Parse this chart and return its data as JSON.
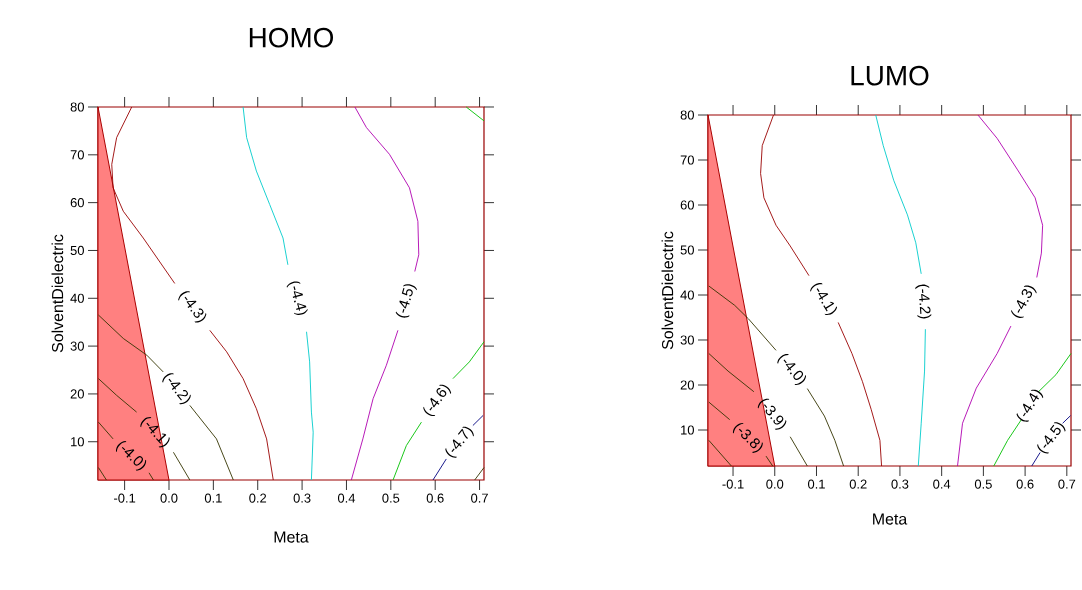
{
  "chart_data": [
    {
      "type": "line",
      "title": "HOMO",
      "xlabel": "Meta",
      "ylabel": "SolventDielectric",
      "xlim": [
        -0.16,
        0.71
      ],
      "ylim": [
        2,
        80
      ],
      "xticks": [
        -0.1,
        {
          "value": 0,
          "label": "0.0"
        },
        0.1,
        0.2,
        0.3,
        0.4,
        0.5,
        0.6,
        0.7
      ],
      "yticks": [
        10,
        20,
        30,
        40,
        50,
        60,
        70,
        80
      ],
      "series": [
        {
          "type": "area",
          "color": "#ff8080",
          "x": [
            -0.16,
            0.0
          ],
          "values": [
            80,
            2
          ]
        },
        {
          "name": "(-4.0)",
          "color": "#333300",
          "x": [
            -0.159,
            -0.126,
            null,
            -0.045,
            -0.035
          ],
          "values": [
            14.1,
            10.6,
            null,
            3.5,
            2
          ]
        },
        {
          "color": "#333300",
          "x": [
            -0.159,
            -0.141
          ],
          "values": [
            4.6,
            2
          ]
        },
        {
          "name": "(-4.1)",
          "color": "#333300",
          "x": [
            -0.159,
            -0.118,
            -0.073,
            null,
            0.01,
            0.047
          ],
          "values": [
            23.2,
            19.7,
            16.2,
            null,
            7.8,
            2
          ]
        },
        {
          "name": "(-4.2)",
          "color": "#333300",
          "x": [
            -0.159,
            -0.103,
            -0.05,
            -0.013,
            null,
            0.047,
            0.107,
            0.145
          ],
          "values": [
            36.5,
            31.6,
            28.1,
            24.6,
            null,
            17.6,
            10.6,
            2
          ]
        },
        {
          "name": "(-4.3)",
          "color": "#990000",
          "x": [
            -0.084,
            -0.118,
            -0.129,
            -0.126,
            -0.103,
            -0.058,
            0.013,
            null,
            0.092,
            0.13,
            0.167,
            0.197,
            0.22,
            0.235
          ],
          "values": [
            80,
            73.6,
            68.0,
            63.1,
            58.2,
            52.6,
            43.1,
            null,
            33.3,
            28.8,
            23.2,
            16.9,
            10.6,
            2
          ]
        },
        {
          "name": "(-4.4)",
          "color": "#00cccc",
          "x": [
            0.167,
            0.175,
            0.197,
            0.227,
            0.257,
            0.268,
            null,
            0.31,
            0.317,
            0.321,
            0.325,
            0.321
          ],
          "values": [
            80,
            73.6,
            66.6,
            59.6,
            52.6,
            47.0,
            null,
            33.0,
            26.7,
            16.2,
            12.0,
            2
          ]
        },
        {
          "name": "(-4.5)",
          "color": "#b000b0",
          "x": [
            0.419,
            0.445,
            0.497,
            0.542,
            0.561,
            0.563,
            0.554,
            null,
            0.516,
            0.49,
            0.46,
            0.437,
            0.411
          ],
          "values": [
            80,
            75.7,
            70.1,
            63.1,
            56.1,
            49.1,
            45.6,
            null,
            33.3,
            26.0,
            19.0,
            10.6,
            2
          ]
        },
        {
          "name": "(-4.6)",
          "color": "#00c000",
          "x": [
            0.505,
            0.535,
            0.569,
            null,
            0.64,
            0.677,
            0.71,
            null,
            0.67,
            0.71
          ],
          "values": [
            2,
            9.2,
            14.1,
            null,
            23.2,
            26.7,
            30.9,
            null,
            80,
            77.1
          ]
        },
        {
          "name": "(-4.7)",
          "color": "#000080",
          "x": [
            0.595,
            0.625,
            null,
            0.685,
            0.708
          ],
          "values": [
            2,
            6.4,
            null,
            13.4,
            15.5
          ]
        },
        {
          "color": "#333300",
          "x": [
            0.689,
            0.71
          ],
          "values": [
            2,
            4.6
          ]
        }
      ]
    },
    {
      "type": "line",
      "title": "LUMO",
      "xlabel": "Meta",
      "ylabel": "SolventDielectric",
      "xlim": [
        -0.16,
        0.71
      ],
      "ylim": [
        2,
        80
      ],
      "xticks": [
        -0.1,
        {
          "value": 0,
          "label": "0.0"
        },
        0.1,
        0.2,
        0.3,
        0.4,
        0.5,
        0.6,
        0.7
      ],
      "yticks": [
        10,
        20,
        30,
        40,
        50,
        60,
        70,
        80
      ],
      "series": [
        {
          "type": "area",
          "color": "#ff8080",
          "x": [
            -0.16,
            0.0
          ],
          "values": [
            80,
            2
          ]
        },
        {
          "name": "(-3.8)",
          "color": "#333300",
          "x": [
            -0.158,
            -0.108,
            null,
            -0.021,
            -0.005
          ],
          "values": [
            16.2,
            12.3,
            null,
            4.2,
            2
          ]
        },
        {
          "color": "#333300",
          "x": [
            -0.158,
            -0.104
          ],
          "values": [
            7.7,
            2
          ]
        },
        {
          "name": "(-3.9)",
          "color": "#333300",
          "x": [
            -0.158,
            -0.112,
            -0.05,
            null,
            0.037,
            0.078
          ],
          "values": [
            27.0,
            23.1,
            18.5,
            null,
            8.5,
            2
          ]
        },
        {
          "name": "(-4.0)",
          "color": "#333300",
          "x": [
            -0.158,
            -0.096,
            -0.063,
            0.003,
            null,
            0.078,
            0.119,
            0.144,
            0.165
          ],
          "values": [
            42.0,
            37.7,
            34.7,
            27.7,
            null,
            19.2,
            13.1,
            7.7,
            2
          ]
        },
        {
          "name": "(-4.1)",
          "color": "#990000",
          "x": [
            -0.003,
            -0.03,
            -0.034,
            -0.026,
            0.003,
            0.037,
            0.082,
            null,
            0.152,
            0.185,
            0.21,
            0.231,
            0.252,
            0.256
          ],
          "values": [
            80,
            73.2,
            67.0,
            61.6,
            55.5,
            50.9,
            44.3,
            null,
            33.9,
            27.0,
            20.8,
            14.6,
            7.7,
            2
          ]
        },
        {
          "name": "(-4.2)",
          "color": "#00cccc",
          "x": [
            0.242,
            0.26,
            0.285,
            0.318,
            0.338,
            0.351,
            null,
            0.361,
            0.359,
            0.351,
            0.344
          ],
          "values": [
            80,
            73.2,
            65.5,
            57.8,
            51.6,
            44.7,
            null,
            32.4,
            23.1,
            11.5,
            2
          ]
        },
        {
          "name": "(-4.3)",
          "color": "#b000b0",
          "x": [
            0.487,
            0.533,
            0.582,
            0.624,
            0.642,
            0.639,
            0.628,
            null,
            0.566,
            0.533,
            0.483,
            0.45,
            0.438
          ],
          "values": [
            80,
            74.8,
            67.8,
            61.6,
            55.5,
            49.3,
            43.9,
            null,
            33.1,
            27.0,
            19.3,
            11.5,
            2
          ]
        },
        {
          "name": "(-4.4)",
          "color": "#00c000",
          "x": [
            0.525,
            0.558,
            0.591,
            null,
            0.632,
            0.674,
            0.71
          ],
          "values": [
            2,
            7.7,
            12.3,
            null,
            18.5,
            22.3,
            27.0
          ]
        },
        {
          "name": "(-4.5)",
          "color": "#000080",
          "x": [
            0.616,
            0.636,
            null,
            0.69,
            0.709
          ],
          "values": [
            2,
            5.0,
            null,
            11.5,
            13.2
          ]
        }
      ]
    }
  ]
}
